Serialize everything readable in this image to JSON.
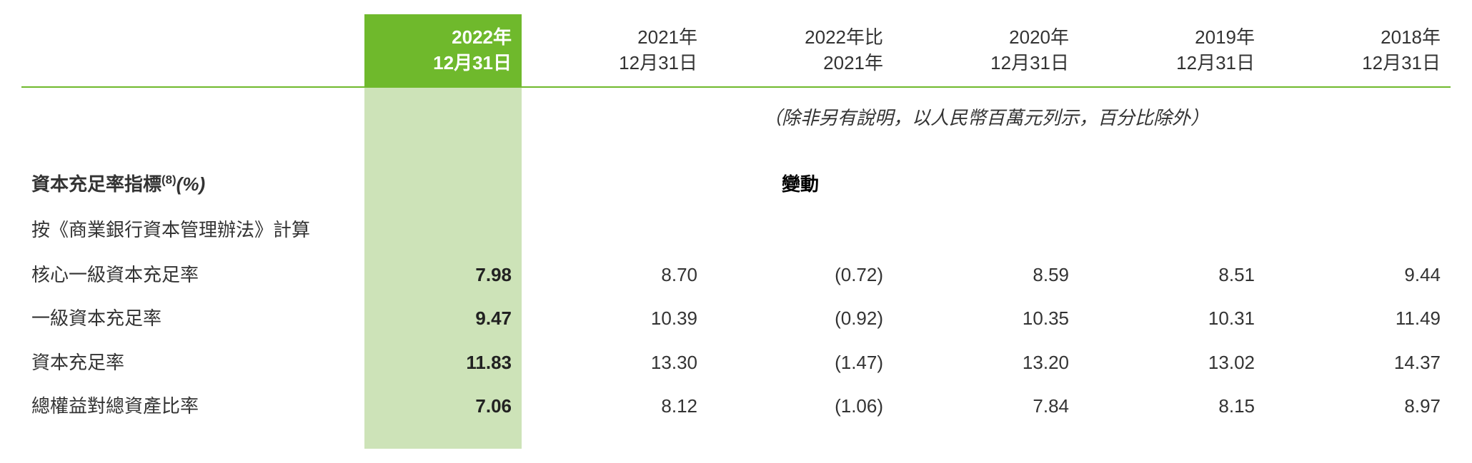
{
  "colors": {
    "highlight_header_bg": "#6fb92c",
    "highlight_cell_bg": "#cde3b8",
    "rule_color": "#6fb92c",
    "text": "#333333",
    "background": "#ffffff"
  },
  "header": {
    "cols": [
      {
        "l1": "2022年",
        "l2": "12月31日"
      },
      {
        "l1": "2021年",
        "l2": "12月31日"
      },
      {
        "l1": "2022年比",
        "l2": "2021年"
      },
      {
        "l1": "2020年",
        "l2": "12月31日"
      },
      {
        "l1": "2019年",
        "l2": "12月31日"
      },
      {
        "l1": "2018年",
        "l2": "12月31日"
      }
    ]
  },
  "note": "（除非另有說明，以人民幣百萬元列示，百分比除外）",
  "section": {
    "title_main": "資本充足率指標",
    "title_sup": "(8)",
    "title_unit": "(%)",
    "subtitle": "按《商業銀行資本管理辦法》計算",
    "change_label": "變動"
  },
  "rows": [
    {
      "label": "核心一級資本充足率",
      "c2022": "7.98",
      "c2021": "8.70",
      "chg": "(0.72)",
      "c2020": "8.59",
      "c2019": "8.51",
      "c2018": "9.44"
    },
    {
      "label": "一級資本充足率",
      "c2022": "9.47",
      "c2021": "10.39",
      "chg": "(0.92)",
      "c2020": "10.35",
      "c2019": "10.31",
      "c2018": "11.49"
    },
    {
      "label": "資本充足率",
      "c2022": "11.83",
      "c2021": "13.30",
      "chg": "(1.47)",
      "c2020": "13.20",
      "c2019": "13.02",
      "c2018": "14.37"
    },
    {
      "label": "總權益對總資產比率",
      "c2022": "7.06",
      "c2021": "8.12",
      "chg": "(1.06)",
      "c2020": "7.84",
      "c2019": "8.15",
      "c2018": "8.97"
    }
  ]
}
